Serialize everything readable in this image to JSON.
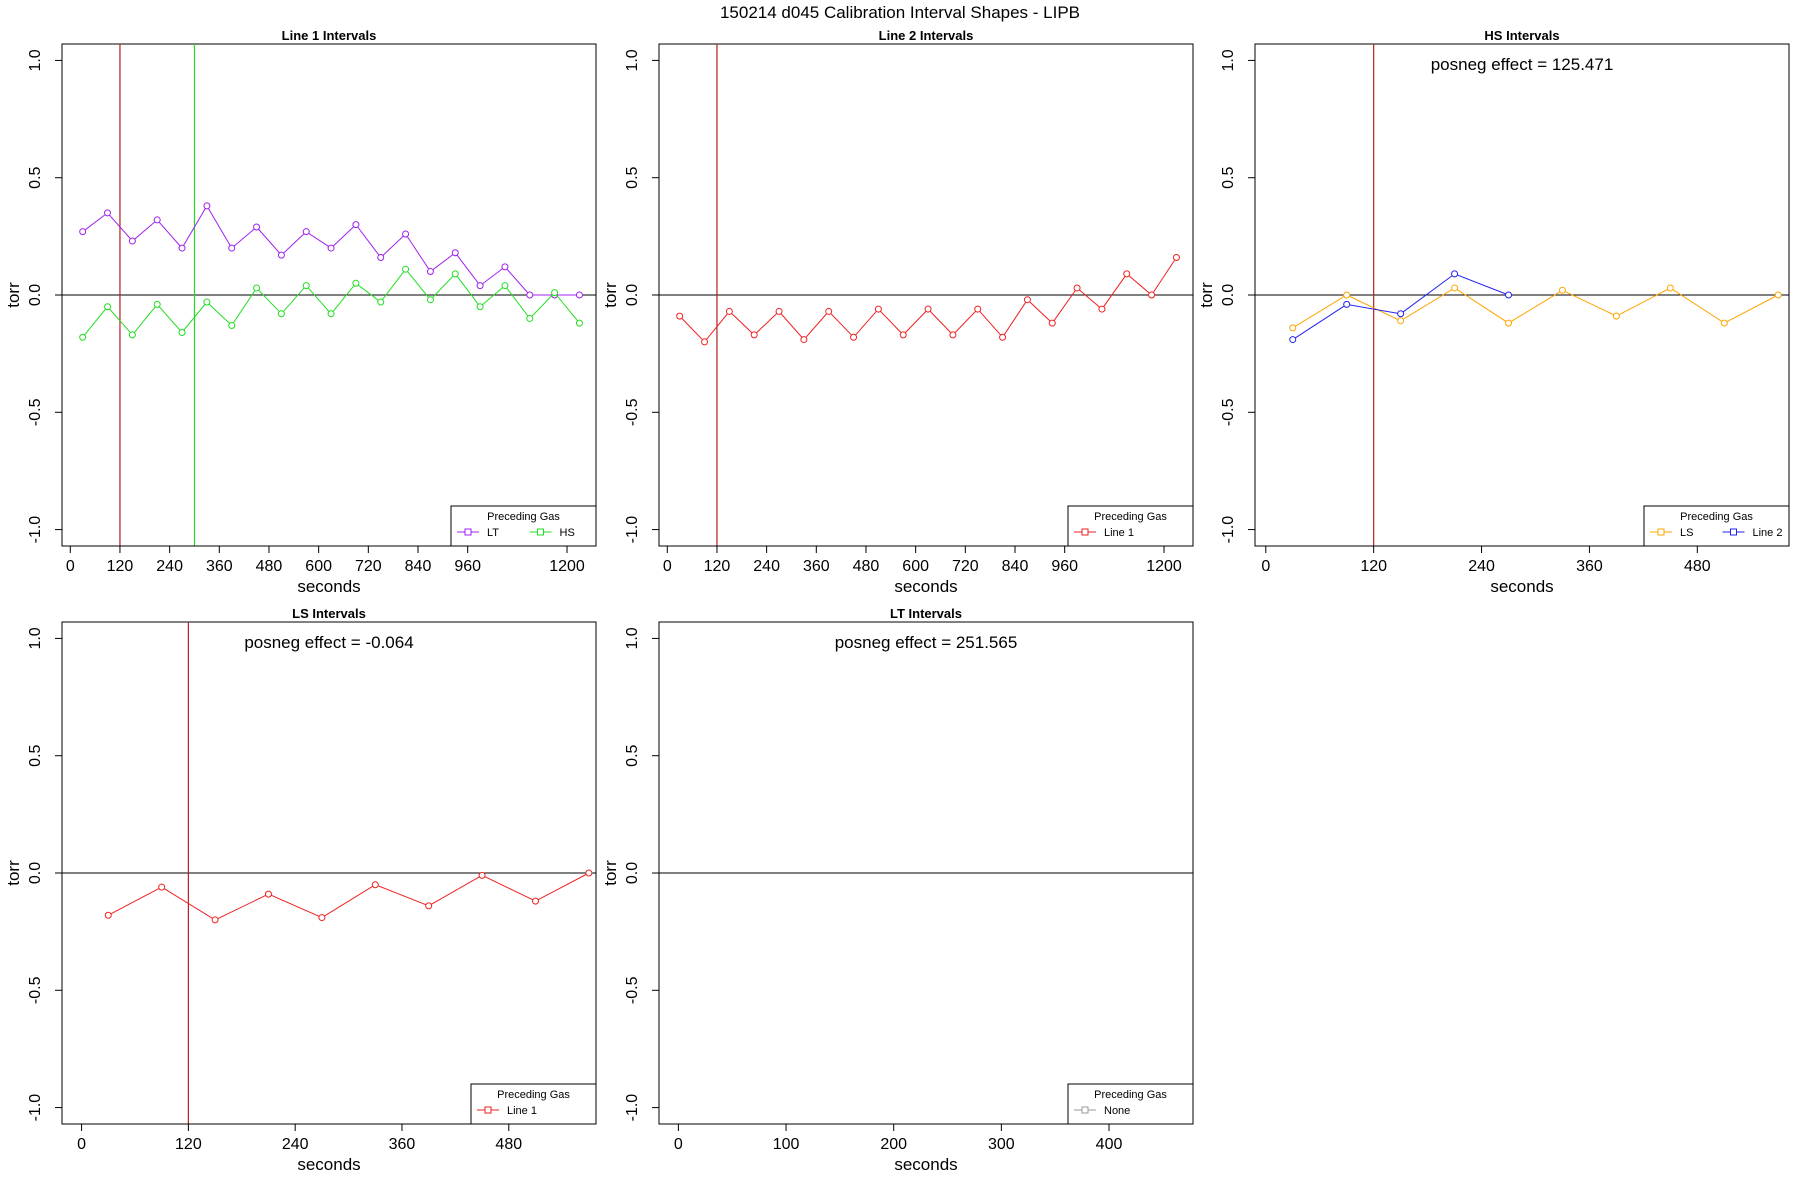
{
  "supertitle": "150214   d045   Calibration Interval Shapes - LIPB",
  "chart_data": [
    {
      "type": "line",
      "title": "Line 1 Intervals",
      "xlabel": "seconds",
      "ylabel": "torr",
      "xlim": [
        -20,
        1270
      ],
      "ylim": [
        -1.07,
        1.07
      ],
      "xticks": [
        0,
        120,
        240,
        360,
        480,
        600,
        720,
        840,
        960,
        1200
      ],
      "yticks": [
        -1.0,
        -0.5,
        0.0,
        0.5,
        1.0
      ],
      "ytick_labels": [
        "-1.0",
        "-0.5",
        "0.0",
        "0.5",
        "1.0"
      ],
      "vlines": [
        {
          "x": 120,
          "color": "#B22222"
        },
        {
          "x": 300,
          "color": "#22DD22"
        }
      ],
      "annotation": "",
      "legend": {
        "title": "Preceding Gas",
        "position": "bottom-right",
        "entries": [
          {
            "label": "LT",
            "color": "#A020F0"
          },
          {
            "label": "HS",
            "color": "#22DD22"
          }
        ]
      },
      "series": [
        {
          "name": "LT",
          "color": "#A020F0",
          "x": [
            30,
            90,
            150,
            210,
            270,
            330,
            390,
            450,
            510,
            570,
            630,
            690,
            750,
            810,
            870,
            930,
            990,
            1050,
            1110,
            1170,
            1230
          ],
          "y": [
            0.27,
            0.35,
            0.23,
            0.32,
            0.2,
            0.38,
            0.2,
            0.29,
            0.17,
            0.27,
            0.2,
            0.3,
            0.16,
            0.26,
            0.1,
            0.18,
            0.04,
            0.12,
            0.0,
            0.0,
            0.0
          ]
        },
        {
          "name": "HS",
          "color": "#22DD22",
          "x": [
            30,
            90,
            150,
            210,
            270,
            330,
            390,
            450,
            510,
            570,
            630,
            690,
            750,
            810,
            870,
            930,
            990,
            1050,
            1110,
            1170,
            1230
          ],
          "y": [
            -0.18,
            -0.05,
            -0.17,
            -0.04,
            -0.16,
            -0.03,
            -0.13,
            0.03,
            -0.08,
            0.04,
            -0.08,
            0.05,
            -0.03,
            0.11,
            -0.02,
            0.09,
            -0.05,
            0.04,
            -0.1,
            0.01,
            -0.12
          ]
        }
      ]
    },
    {
      "type": "line",
      "title": "Line 2 Intervals",
      "xlabel": "seconds",
      "ylabel": "torr",
      "xlim": [
        -20,
        1270
      ],
      "ylim": [
        -1.07,
        1.07
      ],
      "xticks": [
        0,
        120,
        240,
        360,
        480,
        600,
        720,
        840,
        960,
        1200
      ],
      "yticks": [
        -1.0,
        -0.5,
        0.0,
        0.5,
        1.0
      ],
      "ytick_labels": [
        "-1.0",
        "-0.5",
        "0.0",
        "0.5",
        "1.0"
      ],
      "vlines": [
        {
          "x": 120,
          "color": "#B22222"
        }
      ],
      "annotation": "",
      "legend": {
        "title": "Preceding Gas",
        "position": "bottom-right",
        "entries": [
          {
            "label": "Line 1",
            "color": "#EE2222"
          }
        ]
      },
      "series": [
        {
          "name": "Line 1",
          "color": "#EE2222",
          "x": [
            30,
            90,
            150,
            210,
            270,
            330,
            390,
            450,
            510,
            570,
            630,
            690,
            750,
            810,
            870,
            930,
            990,
            1050,
            1110,
            1170,
            1230
          ],
          "y": [
            -0.09,
            -0.2,
            -0.07,
            -0.17,
            -0.07,
            -0.19,
            -0.07,
            -0.18,
            -0.06,
            -0.17,
            -0.06,
            -0.17,
            -0.06,
            -0.18,
            -0.02,
            -0.12,
            0.03,
            -0.06,
            0.09,
            0.0,
            0.16
          ]
        }
      ]
    },
    {
      "type": "line",
      "title": "HS Intervals",
      "xlabel": "seconds",
      "ylabel": "torr",
      "xlim": [
        -12,
        582
      ],
      "ylim": [
        -1.07,
        1.07
      ],
      "xticks": [
        0,
        120,
        240,
        360,
        480
      ],
      "yticks": [
        -1.0,
        -0.5,
        0.0,
        0.5,
        1.0
      ],
      "ytick_labels": [
        "-1.0",
        "-0.5",
        "0.0",
        "0.5",
        "1.0"
      ],
      "vlines": [
        {
          "x": 120,
          "color": "#B22222"
        }
      ],
      "annotation": "posneg effect = 125.471",
      "legend": {
        "title": "Preceding Gas",
        "position": "bottom-right",
        "entries": [
          {
            "label": "LS",
            "color": "#FFA500"
          },
          {
            "label": "Line 2",
            "color": "#2222EE"
          }
        ]
      },
      "series": [
        {
          "name": "LS",
          "color": "#FFA500",
          "x": [
            30,
            90,
            150,
            210,
            270,
            330,
            390,
            450,
            510,
            570
          ],
          "y": [
            -0.14,
            0.0,
            -0.11,
            0.03,
            -0.12,
            0.02,
            -0.09,
            0.03,
            -0.12,
            0.0
          ]
        },
        {
          "name": "Line 2",
          "color": "#2222EE",
          "x": [
            30,
            90,
            150,
            210,
            270
          ],
          "y": [
            -0.19,
            -0.04,
            -0.08,
            0.09,
            0.0
          ]
        }
      ]
    },
    {
      "type": "line",
      "title": "LS Intervals",
      "xlabel": "seconds",
      "ylabel": "torr",
      "xlim": [
        -22,
        578
      ],
      "ylim": [
        -1.07,
        1.07
      ],
      "xticks": [
        0,
        120,
        240,
        360,
        480
      ],
      "yticks": [
        -1.0,
        -0.5,
        0.0,
        0.5,
        1.0
      ],
      "ytick_labels": [
        "-1.0",
        "-0.5",
        "0.0",
        "0.5",
        "1.0"
      ],
      "vlines": [
        {
          "x": 120,
          "color": "#B22222"
        }
      ],
      "annotation": "posneg effect = -0.064",
      "legend": {
        "title": "Preceding Gas",
        "position": "bottom-right",
        "entries": [
          {
            "label": "Line 1",
            "color": "#EE2222"
          }
        ]
      },
      "series": [
        {
          "name": "Line 1",
          "color": "#EE2222",
          "x": [
            30,
            90,
            150,
            210,
            270,
            330,
            390,
            450,
            510,
            570
          ],
          "y": [
            -0.18,
            -0.06,
            -0.2,
            -0.09,
            -0.19,
            -0.05,
            -0.14,
            -0.01,
            -0.12,
            0.0
          ]
        }
      ]
    },
    {
      "type": "line",
      "title": "LT Intervals",
      "xlabel": "seconds",
      "ylabel": "torr",
      "xlim": [
        -18,
        478
      ],
      "ylim": [
        -1.07,
        1.07
      ],
      "xticks": [
        0,
        100,
        200,
        300,
        400
      ],
      "yticks": [
        -1.0,
        -0.5,
        0.0,
        0.5,
        1.0
      ],
      "ytick_labels": [
        "-1.0",
        "-0.5",
        "0.0",
        "0.5",
        "1.0"
      ],
      "vlines": [],
      "annotation": "posneg effect = 251.565",
      "legend": {
        "title": "Preceding Gas",
        "position": "bottom-right",
        "entries": [
          {
            "label": "None",
            "color": "#999999"
          }
        ]
      },
      "series": []
    }
  ]
}
